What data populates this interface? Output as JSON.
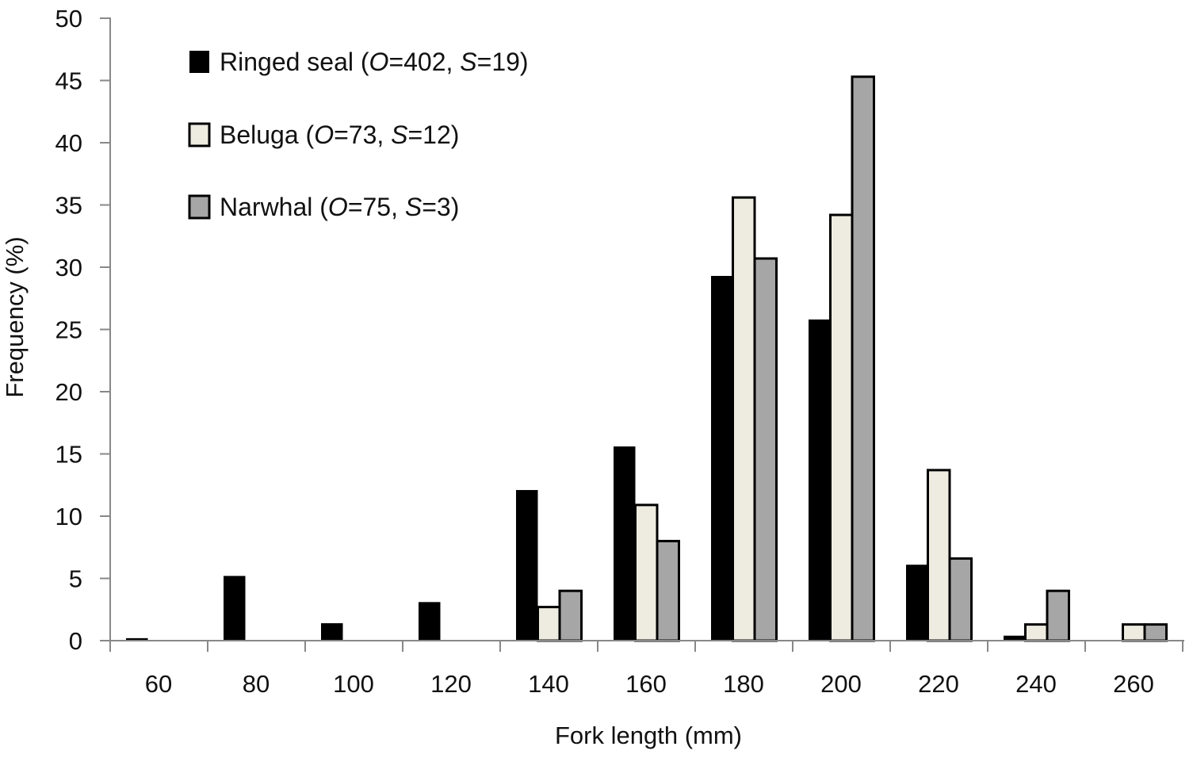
{
  "chart_data": {
    "type": "bar",
    "title": "",
    "xlabel": "Fork length (mm)",
    "ylabel": "Frequency (%)",
    "ylim": [
      0,
      50
    ],
    "yticks": [
      "0",
      "5",
      "10",
      "15",
      "20",
      "25",
      "30",
      "35",
      "40",
      "45",
      "50"
    ],
    "categories": [
      "60",
      "80",
      "100",
      "120",
      "140",
      "160",
      "180",
      "200",
      "220",
      "240",
      "260"
    ],
    "grid": false,
    "legend_position": "top-left",
    "series": [
      {
        "name": "Ringed seal",
        "legend_parts": [
          "Ringed seal (",
          "O",
          "=402, ",
          "S",
          "=19)"
        ],
        "color": "#000000",
        "values": [
          0.2,
          5.2,
          1.4,
          3.1,
          12.1,
          15.6,
          29.3,
          25.8,
          6.1,
          0.4,
          0
        ]
      },
      {
        "name": "Beluga",
        "legend_parts": [
          "Beluga (",
          "O",
          "=73, ",
          "S",
          "=12)"
        ],
        "color": "#eeece0",
        "values": [
          0,
          0,
          0,
          0,
          2.7,
          10.9,
          35.6,
          34.2,
          13.7,
          1.3,
          1.3
        ]
      },
      {
        "name": "Narwhal",
        "legend_parts": [
          "Narwhal (",
          "O",
          "=75, ",
          "S",
          "=3)"
        ],
        "color": "#a6a6a6",
        "values": [
          0,
          0,
          0,
          0,
          4.0,
          8.0,
          30.7,
          45.3,
          6.6,
          4.0,
          1.3
        ]
      }
    ]
  }
}
